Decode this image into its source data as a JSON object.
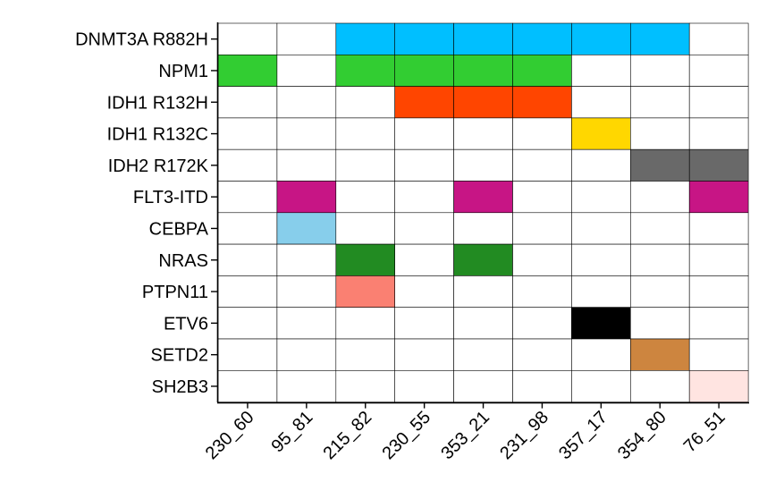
{
  "chart_data": {
    "type": "heatmap",
    "title": "",
    "xlabel": "",
    "ylabel": "",
    "rows": [
      "DNMT3A R882H",
      "NPM1",
      "IDH1 R132H",
      "IDH1 R132C",
      "IDH2 R172K",
      "FLT3-ITD",
      "CEBPA",
      "NRAS",
      "PTPN11",
      "ETV6",
      "SETD2",
      "SH2B3"
    ],
    "columns": [
      "230_60",
      "95_81",
      "215_82",
      "230_55",
      "353_21",
      "231_98",
      "357_17",
      "354_80",
      "76_51"
    ],
    "row_colors": {
      "DNMT3A R882H": "#00BFFF",
      "NPM1": "#32CD32",
      "IDH1 R132H": "#FF4500",
      "IDH1 R132C": "#FFD700",
      "IDH2 R172K": "#696969",
      "FLT3-ITD": "#C71585",
      "CEBPA": "#87CEEB",
      "NRAS": "#228B22",
      "PTPN11": "#FA8072",
      "ETV6": "#000000",
      "SETD2": "#CD853F",
      "SH2B3": "#FFE4E1"
    },
    "values": [
      [
        0,
        0,
        1,
        1,
        1,
        1,
        1,
        1,
        0
      ],
      [
        1,
        0,
        1,
        1,
        1,
        1,
        0,
        0,
        0
      ],
      [
        0,
        0,
        0,
        1,
        1,
        1,
        0,
        0,
        0
      ],
      [
        0,
        0,
        0,
        0,
        0,
        0,
        1,
        0,
        0
      ],
      [
        0,
        0,
        0,
        0,
        0,
        0,
        0,
        1,
        1
      ],
      [
        0,
        1,
        0,
        0,
        1,
        0,
        0,
        0,
        1
      ],
      [
        0,
        1,
        0,
        0,
        0,
        0,
        0,
        0,
        0
      ],
      [
        0,
        0,
        1,
        0,
        1,
        0,
        0,
        0,
        0
      ],
      [
        0,
        0,
        1,
        0,
        0,
        0,
        0,
        0,
        0
      ],
      [
        0,
        0,
        0,
        0,
        0,
        0,
        1,
        0,
        0
      ],
      [
        0,
        0,
        0,
        0,
        0,
        0,
        0,
        1,
        0
      ],
      [
        0,
        0,
        0,
        0,
        0,
        0,
        0,
        0,
        1
      ]
    ],
    "empty_color": "#FFFFFF",
    "grid": true
  }
}
